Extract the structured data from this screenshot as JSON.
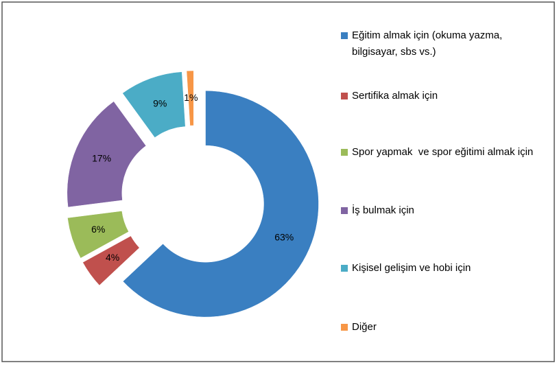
{
  "chart_data": {
    "type": "doughnut",
    "categories": [
      "Eğitim almak için (okuma yazma, bilgisayar, sbs vs.)",
      "Sertifika almak için",
      "Spor yapmak  ve spor eğitimi almak için",
      "İş bulmak için",
      "Kişisel gelişim ve hobi için",
      "Diğer"
    ],
    "values": [
      63,
      4,
      6,
      17,
      9,
      1
    ],
    "value_labels": [
      "63%",
      "4%",
      "6%",
      "17%",
      "9%",
      "1%"
    ],
    "colors": [
      "#3a7fc1",
      "#c0504d",
      "#9bbb59",
      "#8064a2",
      "#4bacc6",
      "#f79646"
    ],
    "legend": "right"
  }
}
